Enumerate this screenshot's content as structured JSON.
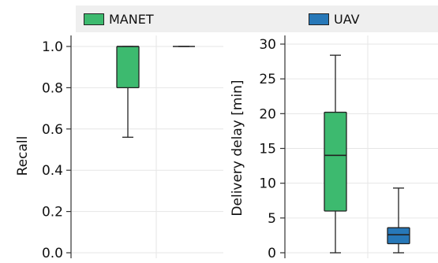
{
  "legend": {
    "items": [
      {
        "label": "MANET",
        "color": "#3dba6f"
      },
      {
        "label": "UAV",
        "color": "#2778b8"
      }
    ]
  },
  "chart_data": [
    {
      "type": "box",
      "ylabel": "Recall",
      "ylim": [
        0.0,
        1.05
      ],
      "yticks": [
        0.0,
        0.2,
        0.4,
        0.6,
        0.8,
        1.0
      ],
      "ytick_labels": [
        "0.0",
        "0.2",
        "0.4",
        "0.6",
        "0.8",
        "1.0"
      ],
      "grid": true,
      "series": [
        {
          "name": "MANET",
          "color": "#3dba6f",
          "min": 0.56,
          "q1": 0.8,
          "median": 1.0,
          "q3": 1.0,
          "max": 1.0
        },
        {
          "name": "UAV",
          "color": "#2778b8",
          "min": 1.0,
          "q1": 1.0,
          "median": 1.0,
          "q3": 1.0,
          "max": 1.0
        }
      ]
    },
    {
      "type": "box",
      "ylabel": "Delivery delay [min]",
      "ylim": [
        0,
        31
      ],
      "yticks": [
        0,
        5,
        10,
        15,
        20,
        25,
        30
      ],
      "ytick_labels": [
        "0",
        "5",
        "10",
        "15",
        "20",
        "25",
        "30"
      ],
      "grid": true,
      "series": [
        {
          "name": "MANET",
          "color": "#3dba6f",
          "min": 0.0,
          "q1": 6.0,
          "median": 14.0,
          "q3": 20.2,
          "max": 28.4
        },
        {
          "name": "UAV",
          "color": "#2778b8",
          "min": 0.0,
          "q1": 1.3,
          "median": 2.6,
          "q3": 3.6,
          "max": 9.3
        }
      ]
    }
  ]
}
